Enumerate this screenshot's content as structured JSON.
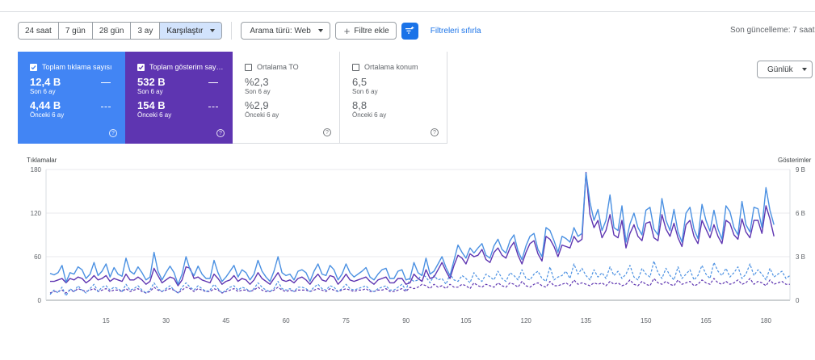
{
  "toolbar": {
    "ranges": [
      "24 saat",
      "7 gün",
      "28 gün",
      "3 ay"
    ],
    "compare_label": "Karşılaştır",
    "search_type_label": "Arama türü: Web",
    "add_filter_label": "Filtre ekle",
    "reset_filters_label": "Filtreleri sıfırla",
    "last_update": "Son güncelleme: 7 saat"
  },
  "cards": [
    {
      "label": "Toplam tıklama sayısı",
      "value": "12,4 B",
      "period": "Son 6 ay",
      "prev_value": "4,44 B",
      "prev_period": "Önceki 6 ay",
      "checked": true,
      "color": "#4285f4"
    },
    {
      "label": "Toplam gösterim sayısı",
      "value": "532 B",
      "period": "Son 6 ay",
      "prev_value": "154 B",
      "prev_period": "Önceki 6 ay",
      "checked": true,
      "color": "#5e35b1"
    },
    {
      "label": "Ortalama TO",
      "value": "%2,3",
      "period": "Son 6 ay",
      "prev_value": "%2,9",
      "prev_period": "Önceki 6 ay",
      "checked": false
    },
    {
      "label": "Ortalama konum",
      "value": "6,5",
      "period": "Son 6 ay",
      "prev_value": "8,8",
      "prev_period": "Önceki 6 ay",
      "checked": false
    }
  ],
  "granularity_label": "Günlük",
  "chart_data": {
    "type": "line",
    "left_axis_label": "Tıklamalar",
    "right_axis_label": "Gösterimler",
    "left_ylim": [
      0,
      180
    ],
    "left_ticks": [
      "0",
      "60",
      "120",
      "180"
    ],
    "right_ticks": [
      "0",
      "3 B",
      "6 B",
      "9 B"
    ],
    "x_ticks": [
      15,
      30,
      45,
      60,
      75,
      90,
      105,
      120,
      135,
      150,
      165,
      180
    ],
    "xlim": [
      0,
      186
    ],
    "clicks_color": "#4a90e2",
    "impressions_color": "#5e35b1",
    "clicks_current": [
      37,
      35,
      38,
      48,
      25,
      38,
      36,
      46,
      42,
      30,
      36,
      52,
      34,
      40,
      50,
      32,
      45,
      36,
      33,
      58,
      40,
      36,
      46,
      38,
      28,
      32,
      66,
      40,
      28,
      38,
      47,
      38,
      22,
      36,
      60,
      42,
      34,
      47,
      36,
      30,
      30,
      55,
      38,
      26,
      32,
      40,
      48,
      32,
      42,
      38,
      28,
      36,
      55,
      40,
      32,
      26,
      40,
      60,
      38,
      34,
      36,
      28,
      40,
      42,
      38,
      26,
      40,
      50,
      36,
      34,
      48,
      42,
      28,
      36,
      50,
      38,
      32,
      36,
      40,
      45,
      32,
      28,
      36,
      42,
      44,
      30,
      30,
      40,
      42,
      28,
      30,
      52,
      38,
      34,
      58,
      36,
      40,
      50,
      60,
      45,
      34,
      55,
      76,
      66,
      58,
      72,
      65,
      72,
      78,
      62,
      58,
      75,
      84,
      70,
      65,
      82,
      90,
      68,
      56,
      75,
      88,
      92,
      70,
      60,
      100,
      96,
      82,
      66,
      88,
      85,
      80,
      100,
      88,
      92,
      175,
      135,
      110,
      125,
      96,
      110,
      145,
      100,
      96,
      130,
      80,
      105,
      120,
      100,
      90,
      124,
      128,
      98,
      90,
      140,
      110,
      96,
      125,
      94,
      80,
      120,
      128,
      98,
      85,
      132,
      110,
      95,
      124,
      98,
      84,
      130,
      122,
      100,
      90,
      136,
      104,
      94,
      128,
      126,
      100,
      155,
      124,
      104
    ],
    "impressions_current": [
      26,
      26,
      28,
      30,
      24,
      30,
      28,
      32,
      30,
      24,
      28,
      34,
      28,
      30,
      34,
      26,
      30,
      28,
      26,
      36,
      28,
      28,
      32,
      28,
      22,
      26,
      44,
      34,
      24,
      28,
      32,
      30,
      20,
      28,
      46,
      44,
      30,
      32,
      28,
      26,
      24,
      36,
      30,
      22,
      26,
      28,
      34,
      26,
      30,
      28,
      22,
      28,
      38,
      30,
      26,
      22,
      30,
      38,
      28,
      26,
      28,
      24,
      30,
      32,
      28,
      22,
      30,
      36,
      28,
      26,
      34,
      32,
      22,
      28,
      36,
      28,
      26,
      28,
      30,
      32,
      26,
      22,
      28,
      30,
      32,
      24,
      24,
      30,
      30,
      22,
      24,
      36,
      30,
      26,
      42,
      30,
      32,
      42,
      52,
      40,
      30,
      48,
      62,
      58,
      50,
      64,
      60,
      62,
      70,
      56,
      52,
      66,
      72,
      62,
      58,
      72,
      80,
      62,
      50,
      66,
      78,
      82,
      64,
      54,
      88,
      84,
      74,
      60,
      76,
      74,
      72,
      88,
      80,
      84,
      176,
      118,
      100,
      110,
      86,
      96,
      118,
      90,
      86,
      110,
      72,
      92,
      104,
      88,
      82,
      106,
      108,
      86,
      82,
      118,
      98,
      88,
      106,
      86,
      74,
      104,
      110,
      88,
      78,
      110,
      98,
      86,
      104,
      88,
      78,
      110,
      106,
      90,
      84,
      112,
      94,
      86,
      110,
      110,
      92,
      130,
      112,
      88
    ],
    "clicks_previous": [
      8,
      14,
      10,
      18,
      6,
      16,
      12,
      20,
      14,
      10,
      16,
      22,
      12,
      18,
      20,
      14,
      18,
      16,
      12,
      22,
      14,
      16,
      20,
      14,
      10,
      14,
      24,
      16,
      12,
      16,
      20,
      14,
      10,
      18,
      24,
      18,
      14,
      20,
      16,
      12,
      14,
      22,
      16,
      10,
      14,
      18,
      20,
      14,
      18,
      16,
      12,
      16,
      24,
      18,
      14,
      12,
      16,
      26,
      16,
      14,
      16,
      12,
      18,
      18,
      16,
      12,
      18,
      22,
      16,
      14,
      20,
      18,
      12,
      16,
      22,
      16,
      14,
      16,
      18,
      20,
      14,
      12,
      16,
      18,
      20,
      14,
      14,
      18,
      22,
      14,
      30,
      26,
      28,
      36,
      32,
      24,
      34,
      28,
      30,
      22,
      36,
      28,
      26,
      34,
      30,
      24,
      38,
      30,
      26,
      36,
      32,
      28,
      40,
      30,
      26,
      38,
      34,
      28,
      42,
      30,
      28,
      36,
      40,
      30,
      26,
      46,
      28,
      32,
      34,
      40,
      30,
      50,
      36,
      44,
      34,
      28,
      42,
      32,
      38,
      30,
      46,
      34,
      40,
      30,
      36,
      48,
      32,
      28,
      44,
      36,
      32,
      54,
      38,
      30,
      44,
      34,
      28,
      46,
      30,
      36,
      42,
      28,
      34,
      48,
      36,
      30,
      52,
      40,
      34,
      44,
      32,
      38,
      46,
      30,
      36,
      50,
      34,
      42,
      36,
      28,
      44,
      32,
      36,
      40,
      30,
      34
    ],
    "impressions_previous": [
      10,
      12,
      12,
      14,
      10,
      14,
      12,
      16,
      14,
      12,
      14,
      16,
      12,
      14,
      16,
      12,
      14,
      14,
      12,
      16,
      12,
      14,
      16,
      12,
      10,
      12,
      18,
      14,
      12,
      14,
      16,
      14,
      10,
      14,
      18,
      16,
      12,
      16,
      14,
      12,
      12,
      16,
      14,
      10,
      12,
      14,
      16,
      12,
      14,
      14,
      12,
      14,
      18,
      14,
      12,
      12,
      14,
      18,
      14,
      12,
      14,
      12,
      14,
      14,
      14,
      12,
      14,
      16,
      14,
      12,
      16,
      14,
      12,
      14,
      16,
      14,
      12,
      14,
      14,
      16,
      12,
      12,
      14,
      14,
      16,
      12,
      12,
      14,
      16,
      12,
      18,
      16,
      18,
      22,
      20,
      16,
      22,
      18,
      20,
      16,
      22,
      18,
      18,
      22,
      20,
      16,
      24,
      20,
      18,
      22,
      20,
      18,
      24,
      20,
      18,
      24,
      22,
      18,
      26,
      20,
      18,
      22,
      24,
      20,
      18,
      26,
      20,
      20,
      22,
      24,
      20,
      28,
      22,
      24,
      22,
      20,
      24,
      22,
      24,
      20,
      26,
      22,
      24,
      20,
      22,
      28,
      22,
      20,
      26,
      22,
      20,
      30,
      24,
      22,
      26,
      22,
      20,
      28,
      22,
      24,
      26,
      20,
      22,
      28,
      24,
      22,
      30,
      24,
      22,
      26,
      22,
      24,
      28,
      22,
      24,
      30,
      22,
      26,
      24,
      20,
      28,
      22,
      24,
      26,
      22,
      22
    ]
  }
}
